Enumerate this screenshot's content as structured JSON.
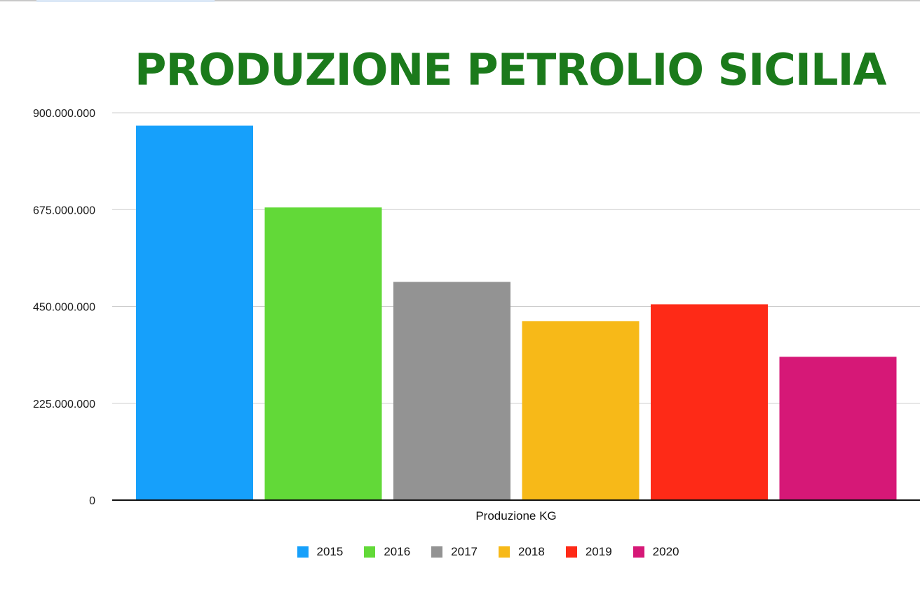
{
  "chart_data": {
    "type": "bar",
    "title": "PRODUZIONE PETROLIO SICILIA",
    "xlabel": "Produzione KG",
    "ylabel": "",
    "categories": [
      "Produzione KG"
    ],
    "series": [
      {
        "name": "2015",
        "values": [
          870000000
        ],
        "color": "#16a0fb"
      },
      {
        "name": "2016",
        "values": [
          680000000
        ],
        "color": "#62d938"
      },
      {
        "name": "2017",
        "values": [
          507000000
        ],
        "color": "#939393"
      },
      {
        "name": "2018",
        "values": [
          416000000
        ],
        "color": "#f7b918"
      },
      {
        "name": "2019",
        "values": [
          455000000
        ],
        "color": "#fe2a17"
      },
      {
        "name": "2020",
        "values": [
          333000000
        ],
        "color": "#d61877"
      }
    ],
    "ylim": [
      0,
      900000000
    ],
    "yticks": [
      "0",
      "225.000.000",
      "450.000.000",
      "675.000.000",
      "900.000.000"
    ],
    "grid": true,
    "legend_position": "bottom"
  }
}
